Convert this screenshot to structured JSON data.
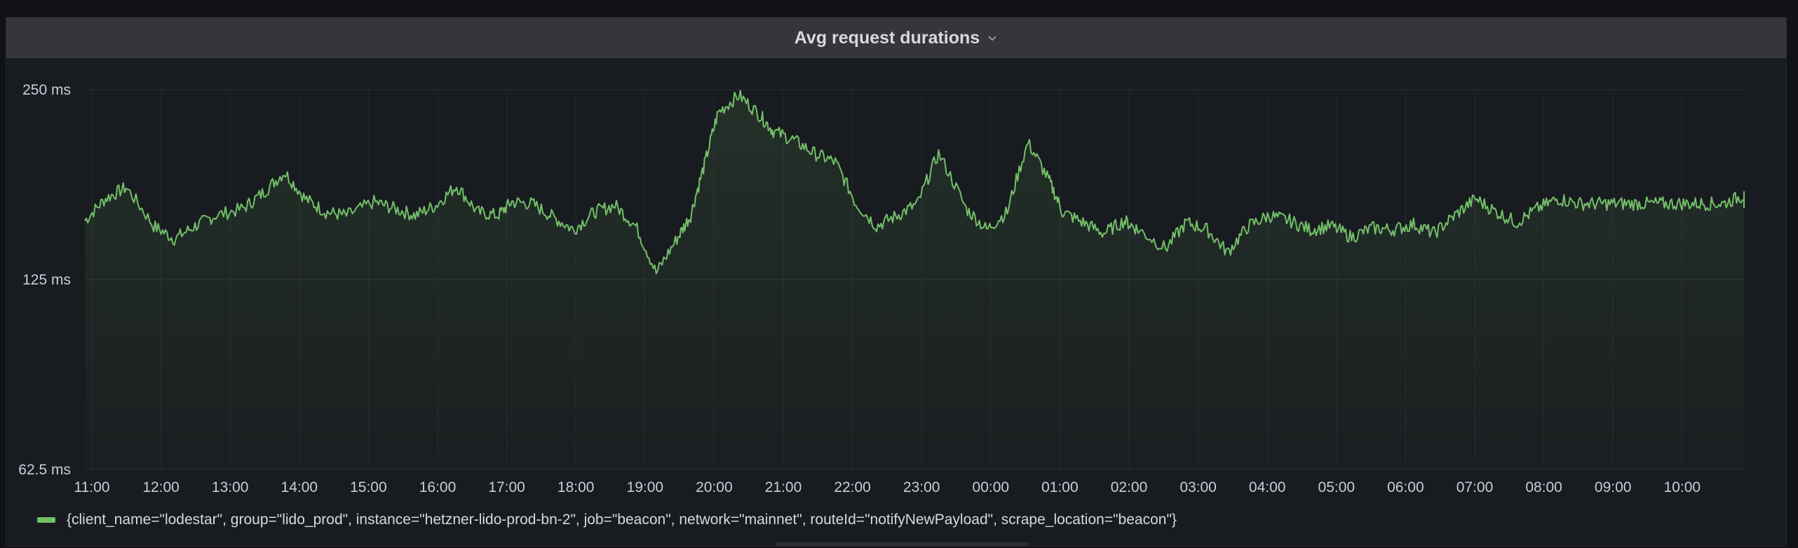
{
  "panel": {
    "title": "Avg request durations",
    "chevron_icon": "chevron-down-icon"
  },
  "legend": {
    "label": "{client_name=\"lodestar\", group=\"lido_prod\", instance=\"hetzner-lido-prod-bn-2\", job=\"beacon\", network=\"mainnet\", routeId=\"notifyNewPayload\", scrape_location=\"beacon\"}",
    "color": "#73bf69"
  },
  "chart_data": {
    "type": "line",
    "title": "Avg request durations",
    "yscale": "log2",
    "ylim": [
      62.5,
      250
    ],
    "yticks": [
      {
        "value": 250,
        "label": "250 ms"
      },
      {
        "value": 125,
        "label": "125 ms"
      },
      {
        "value": 62.5,
        "label": "62.5 ms"
      }
    ],
    "xticks": [
      "11:00",
      "12:00",
      "13:00",
      "14:00",
      "15:00",
      "16:00",
      "17:00",
      "18:00",
      "19:00",
      "20:00",
      "21:00",
      "22:00",
      "23:00",
      "00:00",
      "01:00",
      "02:00",
      "03:00",
      "04:00",
      "05:00",
      "06:00",
      "07:00",
      "08:00",
      "09:00",
      "10:00"
    ],
    "grid": true,
    "legend_position": "bottom-left",
    "series": [
      {
        "color": "#73bf69",
        "x": [
          10.9,
          11.2,
          11.5,
          11.9,
          12.2,
          12.5,
          12.8,
          13.2,
          13.5,
          13.8,
          14.1,
          14.4,
          14.7,
          15.1,
          15.4,
          15.7,
          16.0,
          16.3,
          16.6,
          16.9,
          17.1,
          17.4,
          17.7,
          18.0,
          18.3,
          18.6,
          18.9,
          19.2,
          19.5,
          19.7,
          19.9,
          20.1,
          20.4,
          20.7,
          20.9,
          21.2,
          21.5,
          21.8,
          22.1,
          22.4,
          22.7,
          23.0,
          23.3,
          23.7,
          24.0,
          24.3,
          24.6,
          24.9,
          25.1,
          25.4,
          25.7,
          26.0,
          26.2,
          26.6,
          26.9,
          27.2,
          27.5,
          27.8,
          28.1,
          28.4,
          28.7,
          29.0,
          29.3,
          29.6,
          29.9,
          30.2,
          30.5,
          30.8,
          31.1,
          31.4,
          31.7,
          32.0,
          32.3,
          32.6,
          32.9,
          33.2,
          33.5,
          33.8,
          34.1,
          34.4,
          34.7,
          35.0,
          35.0
        ],
        "y": [
          155,
          168,
          175,
          152,
          145,
          152,
          158,
          162,
          172,
          185,
          168,
          160,
          158,
          166,
          162,
          158,
          164,
          176,
          160,
          158,
          166,
          165,
          157,
          150,
          160,
          164,
          152,
          128,
          145,
          158,
          190,
          230,
          245,
          228,
          215,
          208,
          198,
          192,
          165,
          152,
          158,
          165,
          198,
          162,
          150,
          160,
          206,
          180,
          160,
          154,
          148,
          155,
          150,
          140,
          154,
          150,
          138,
          152,
          158,
          155,
          150,
          152,
          146,
          151,
          150,
          153,
          148,
          158,
          168,
          160,
          154,
          162,
          168,
          165,
          165,
          165,
          165,
          165,
          165,
          165,
          165,
          170,
          165
        ]
      }
    ]
  }
}
